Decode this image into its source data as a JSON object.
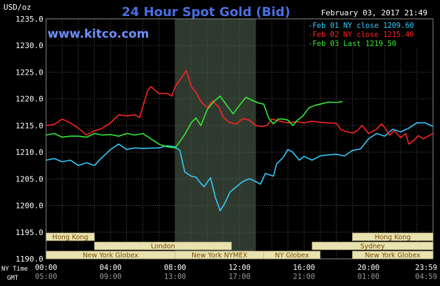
{
  "header": {
    "title": "24 Hour Spot Gold (Bid)",
    "units": "USD/oz",
    "datetime": "February 03, 2017 21:49",
    "site": "www.kitco.com"
  },
  "axis": {
    "ny_time_label": "NY Time",
    "gmt_label": "GMT"
  },
  "colors": {
    "background": "#000000",
    "plot_bg": "#000000",
    "grid": "#555555",
    "shade": "#2f3a2f",
    "title": "#4a6fe3",
    "site": "#6f8fff",
    "text": "#ffffff",
    "session_bar": "#e8e2b0",
    "session_text": "#7a4a00"
  },
  "sessions": [
    {
      "label": "Hong Kong",
      "row": 0,
      "start": 0.0,
      "end": 3.0
    },
    {
      "label": "Hong Kong",
      "row": 0,
      "start": 19.0,
      "end": 24.0
    },
    {
      "label": "London",
      "row": 1,
      "start": 3.0,
      "end": 11.5
    },
    {
      "label": "Sydney",
      "row": 1,
      "start": 16.5,
      "end": 24.0
    },
    {
      "label": "New York Globex",
      "row": 2,
      "start": 0.0,
      "end": 8.0
    },
    {
      "label": "New York NYMEX",
      "row": 2,
      "start": 8.0,
      "end": 13.5
    },
    {
      "label": "NY Globex",
      "row": 2,
      "start": 13.5,
      "end": 17.0
    },
    {
      "label": "New York Globex",
      "row": 2,
      "start": 19.0,
      "end": 24.0
    }
  ],
  "chart_data": {
    "type": "line",
    "title": "24 Hour Spot Gold (Bid)",
    "ylabel": "USD/oz",
    "ylim": [
      1190,
      1235
    ],
    "yticks": [
      "1190.0",
      "1195.0",
      "1200.0",
      "1205.0",
      "1210.0",
      "1215.0",
      "1220.0",
      "1225.0",
      "1230.0",
      "1235.0"
    ],
    "xlim": [
      0,
      24
    ],
    "xticks_ny": [
      "00:00",
      "04:00",
      "08:00",
      "12:00",
      "16:00",
      "20:00",
      "23:59"
    ],
    "xticks_gmt": [
      "05:00",
      "09:00",
      "13:00",
      "17:00",
      "21:00",
      "01:00",
      "04:59"
    ],
    "xtick_hours": [
      0,
      4,
      8,
      12,
      16,
      20,
      23.98
    ],
    "shaded_range": [
      8,
      13
    ],
    "grid": true,
    "legend_position": "top-right",
    "series": [
      {
        "name": "Feb 01 NY close",
        "last": "1209.60",
        "color": "#33ccff",
        "points": [
          [
            0,
            1208.5
          ],
          [
            0.5,
            1208.8
          ],
          [
            1,
            1208.2
          ],
          [
            1.5,
            1208.5
          ],
          [
            2,
            1207.5
          ],
          [
            2.5,
            1208.0
          ],
          [
            3,
            1207.5
          ],
          [
            3.4,
            1208.8
          ],
          [
            4,
            1210.5
          ],
          [
            4.5,
            1211.5
          ],
          [
            5,
            1210.5
          ],
          [
            5.5,
            1210.8
          ],
          [
            6,
            1210.7
          ],
          [
            7,
            1210.8
          ],
          [
            7.5,
            1211.2
          ],
          [
            8,
            1211.0
          ],
          [
            8.3,
            1210.3
          ],
          [
            8.6,
            1206.3
          ],
          [
            9,
            1205.5
          ],
          [
            9.3,
            1205.3
          ],
          [
            9.5,
            1204.5
          ],
          [
            9.8,
            1203.5
          ],
          [
            10.2,
            1205.2
          ],
          [
            10.5,
            1201.5
          ],
          [
            10.8,
            1199.0
          ],
          [
            11.1,
            1200.5
          ],
          [
            11.4,
            1202.5
          ],
          [
            11.8,
            1203.5
          ],
          [
            12.2,
            1204.5
          ],
          [
            12.6,
            1205.0
          ],
          [
            13,
            1204.5
          ],
          [
            13.3,
            1204.0
          ],
          [
            13.6,
            1206.0
          ],
          [
            14.1,
            1205.5
          ],
          [
            14.3,
            1207.8
          ],
          [
            14.7,
            1209.0
          ],
          [
            15,
            1210.5
          ],
          [
            15.3,
            1210.0
          ],
          [
            15.7,
            1208.5
          ],
          [
            16,
            1209.2
          ],
          [
            16.5,
            1208.5
          ],
          [
            17,
            1209.3
          ],
          [
            17.5,
            1209.5
          ],
          [
            18,
            1209.6
          ],
          [
            18.5,
            1209.3
          ],
          [
            19,
            1210.3
          ],
          [
            19.5,
            1210.6
          ],
          [
            20,
            1212.5
          ],
          [
            20.5,
            1213.5
          ],
          [
            21,
            1213.0
          ],
          [
            21.5,
            1214.3
          ],
          [
            22,
            1213.8
          ],
          [
            22.5,
            1214.5
          ],
          [
            23,
            1215.5
          ],
          [
            23.5,
            1215.5
          ],
          [
            24,
            1214.8
          ]
        ]
      },
      {
        "name": "Feb 02 NY close",
        "last": "1215.40",
        "color": "#ff2222",
        "points": [
          [
            0,
            1215.0
          ],
          [
            0.5,
            1215.2
          ],
          [
            1,
            1216.2
          ],
          [
            1.5,
            1215.5
          ],
          [
            2,
            1214.5
          ],
          [
            2.5,
            1213.2
          ],
          [
            3,
            1214.0
          ],
          [
            3.5,
            1214.5
          ],
          [
            4,
            1215.5
          ],
          [
            4.5,
            1217.0
          ],
          [
            5,
            1216.8
          ],
          [
            5.5,
            1217.0
          ],
          [
            5.8,
            1216.5
          ],
          [
            6,
            1218.5
          ],
          [
            6.3,
            1221.5
          ],
          [
            6.5,
            1222.3
          ],
          [
            7,
            1221.0
          ],
          [
            7.5,
            1221.0
          ],
          [
            7.8,
            1220.5
          ],
          [
            8,
            1222.3
          ],
          [
            8.3,
            1223.5
          ],
          [
            8.7,
            1225.3
          ],
          [
            9,
            1222.3
          ],
          [
            9.3,
            1221.2
          ],
          [
            9.6,
            1219.5
          ],
          [
            10,
            1218.3
          ],
          [
            10.3,
            1219.6
          ],
          [
            10.7,
            1218.5
          ],
          [
            11,
            1216.5
          ],
          [
            11.4,
            1215.5
          ],
          [
            11.8,
            1215.3
          ],
          [
            12.2,
            1216.3
          ],
          [
            12.6,
            1216.0
          ],
          [
            13,
            1215.0
          ],
          [
            13.3,
            1214.8
          ],
          [
            13.7,
            1215.0
          ],
          [
            14,
            1216.2
          ],
          [
            14.5,
            1215.8
          ],
          [
            15,
            1215.5
          ],
          [
            15.5,
            1215.7
          ],
          [
            16,
            1215.5
          ],
          [
            16.5,
            1215.8
          ],
          [
            17,
            1215.6
          ],
          [
            17.5,
            1215.5
          ],
          [
            18,
            1215.4
          ],
          [
            18.3,
            1214.2
          ],
          [
            18.7,
            1213.8
          ],
          [
            19,
            1213.6
          ],
          [
            19.3,
            1214.0
          ],
          [
            19.6,
            1215.0
          ],
          [
            20,
            1213.5
          ],
          [
            20.5,
            1214.3
          ],
          [
            20.8,
            1215.3
          ],
          [
            21,
            1214.6
          ],
          [
            21.3,
            1213.2
          ],
          [
            21.6,
            1214.0
          ],
          [
            22,
            1212.7
          ],
          [
            22.3,
            1213.5
          ],
          [
            22.5,
            1211.5
          ],
          [
            22.8,
            1212.2
          ],
          [
            23.1,
            1213.1
          ],
          [
            23.4,
            1212.5
          ],
          [
            23.7,
            1213.0
          ],
          [
            24,
            1213.5
          ]
        ]
      },
      {
        "name": "Feb 03 Last",
        "last": "1219.50",
        "color": "#33ee33",
        "points": [
          [
            0,
            1213.2
          ],
          [
            0.5,
            1213.5
          ],
          [
            1,
            1212.8
          ],
          [
            1.5,
            1213.0
          ],
          [
            2,
            1213.0
          ],
          [
            2.5,
            1212.8
          ],
          [
            3,
            1213.5
          ],
          [
            3.5,
            1213.2
          ],
          [
            4,
            1213.3
          ],
          [
            4.5,
            1213.0
          ],
          [
            5,
            1213.5
          ],
          [
            5.5,
            1213.2
          ],
          [
            6,
            1213.5
          ],
          [
            6.5,
            1212.5
          ],
          [
            7,
            1211.5
          ],
          [
            7.5,
            1211.0
          ],
          [
            8,
            1210.8
          ],
          [
            8.3,
            1212.0
          ],
          [
            8.6,
            1213.3
          ],
          [
            9,
            1215.5
          ],
          [
            9.3,
            1216.4
          ],
          [
            9.6,
            1215.0
          ],
          [
            10,
            1218.0
          ],
          [
            10.4,
            1219.5
          ],
          [
            10.8,
            1220.5
          ],
          [
            11.2,
            1218.8
          ],
          [
            11.6,
            1217.2
          ],
          [
            12,
            1218.8
          ],
          [
            12.4,
            1220.3
          ],
          [
            12.8,
            1219.7
          ],
          [
            13.2,
            1219.2
          ],
          [
            13.5,
            1219.0
          ],
          [
            13.8,
            1216.4
          ],
          [
            14.1,
            1215.3
          ],
          [
            14.4,
            1216.2
          ],
          [
            14.7,
            1216.2
          ],
          [
            15,
            1216.0
          ],
          [
            15.3,
            1215.0
          ],
          [
            15.6,
            1216.0
          ],
          [
            15.9,
            1216.7
          ],
          [
            16.3,
            1218.3
          ],
          [
            16.7,
            1218.8
          ],
          [
            17,
            1219.0
          ],
          [
            17.5,
            1219.4
          ],
          [
            18,
            1219.3
          ],
          [
            18.4,
            1219.5
          ]
        ]
      }
    ]
  }
}
